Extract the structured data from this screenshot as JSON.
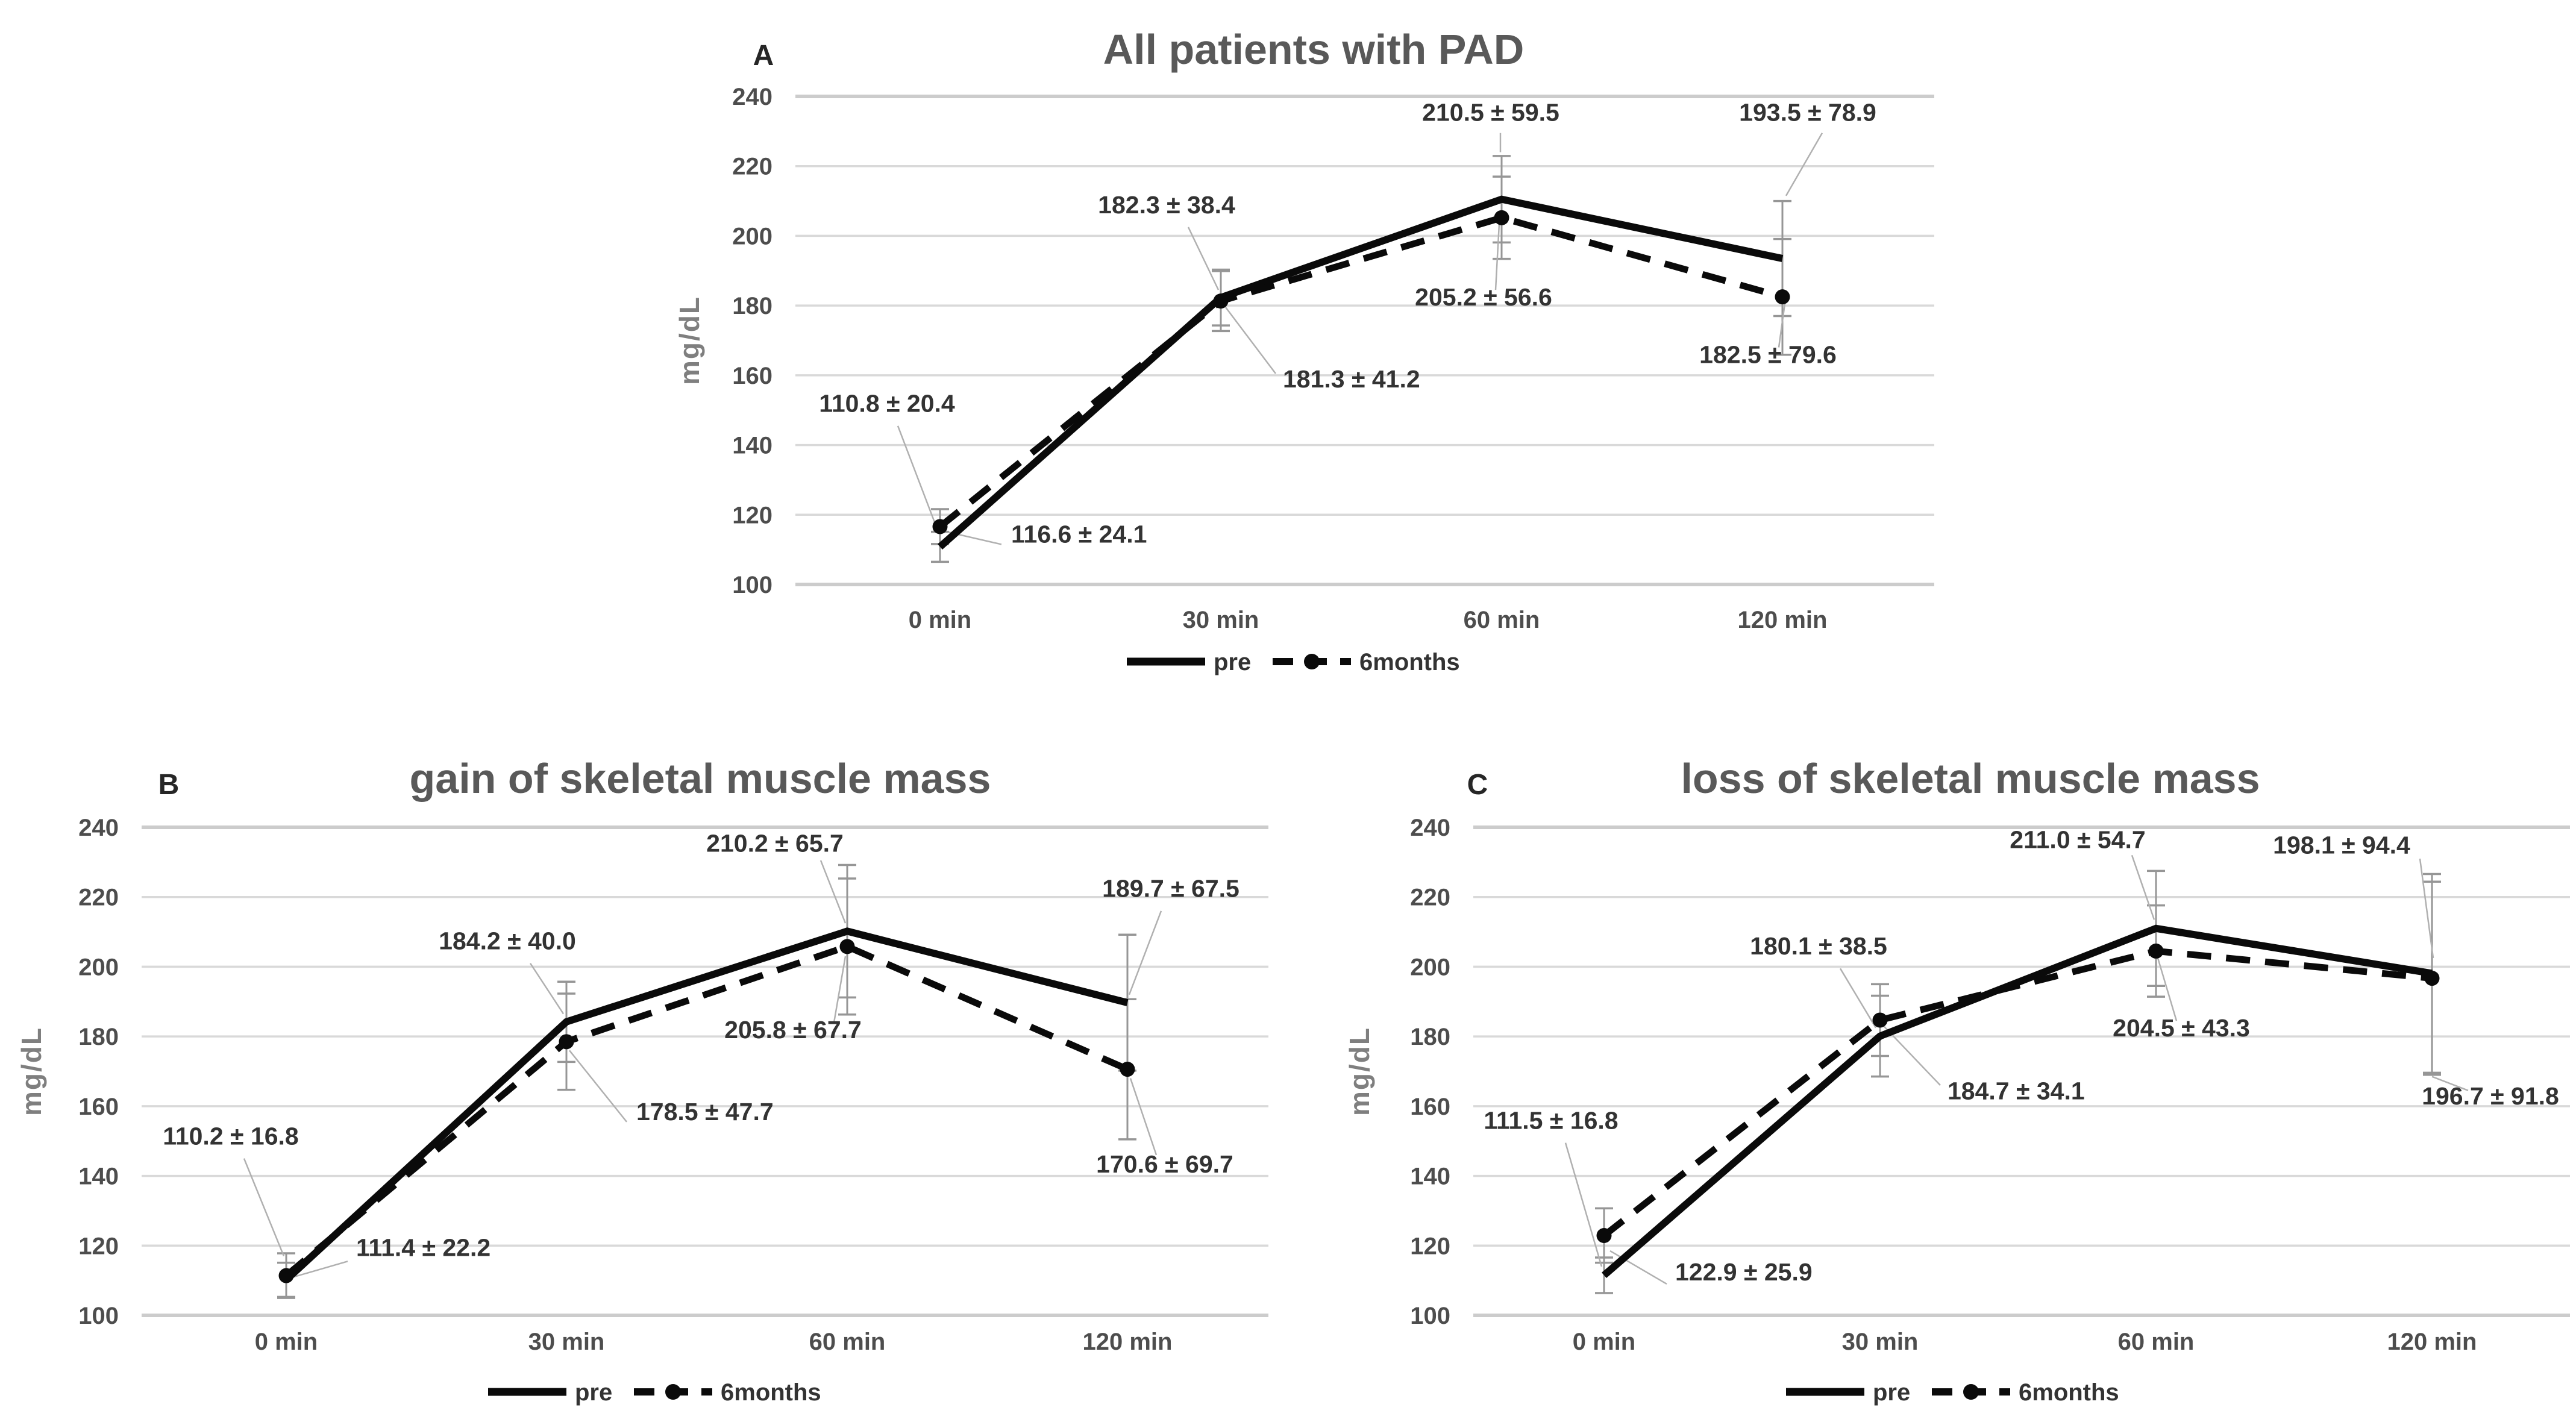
{
  "figure": {
    "background": "#ffffff",
    "colors": {
      "series_line": "#0a0a0a",
      "grid": "#d9d9d9",
      "grid_edge": "#cccccc",
      "error_bar": "#969696",
      "leader_line": "#b0b0b0",
      "title_text": "#595959",
      "tick_text": "#4d4d4d",
      "data_label_text": "#333333",
      "axis_label_text": "#7f7f7f"
    },
    "legend_labels": [
      "pre",
      "6months"
    ]
  },
  "chart_data": [
    {
      "type": "line",
      "panel": "A",
      "title": "All patients with PAD",
      "xlabel": "",
      "ylabel": "mg/dL",
      "categories": [
        "0 min",
        "30 min",
        "60 min",
        "120 min"
      ],
      "ylim": [
        100,
        240
      ],
      "y_ticks": [
        240,
        220,
        200,
        180,
        160,
        140,
        120,
        100
      ],
      "grid": true,
      "legend_position": "bottom",
      "series": [
        {
          "name": "pre",
          "line_style": "solid",
          "marker": "none",
          "values": [
            110.8,
            182.3,
            210.5,
            193.5
          ],
          "sd": [
            20.4,
            38.4,
            59.5,
            78.9
          ],
          "point_labels": [
            "110.8 ± 20.4",
            "182.3 ± 38.4",
            "210.5 ± 59.5",
            "193.5 ± 78.9"
          ],
          "err_visual": [
            4.3,
            8.0,
            12.4,
            16.5
          ]
        },
        {
          "name": "6months",
          "line_style": "dashed",
          "marker": "circle",
          "values": [
            116.6,
            181.3,
            205.2,
            182.5
          ],
          "sd": [
            24.1,
            41.2,
            56.6,
            79.6
          ],
          "point_labels": [
            "116.6 ± 24.1",
            "181.3 ± 41.2",
            "205.2 ± 56.6",
            "182.5 ± 79.6"
          ],
          "err_visual": [
            5.0,
            8.6,
            11.8,
            16.6
          ]
        }
      ]
    },
    {
      "type": "line",
      "panel": "B",
      "title": "gain of skeletal muscle mass",
      "xlabel": "",
      "ylabel": "mg/dL",
      "categories": [
        "0 min",
        "30 min",
        "60 min",
        "120 min"
      ],
      "ylim": [
        100,
        240
      ],
      "y_ticks": [
        240,
        220,
        200,
        180,
        160,
        140,
        120,
        100
      ],
      "grid": true,
      "legend_position": "bottom",
      "series": [
        {
          "name": "pre",
          "line_style": "solid",
          "marker": "none",
          "values": [
            110.2,
            184.2,
            210.2,
            189.7
          ],
          "sd": [
            16.8,
            40.0,
            65.7,
            67.5
          ],
          "point_labels": [
            "110.2 ± 16.8",
            "184.2 ± 40.0",
            "210.2 ± 65.7",
            "189.7 ± 67.5"
          ],
          "err_visual": [
            4.9,
            11.5,
            19.0,
            19.5
          ]
        },
        {
          "name": "6months",
          "line_style": "dashed",
          "marker": "circle",
          "values": [
            111.4,
            178.5,
            205.8,
            170.6
          ],
          "sd": [
            22.2,
            47.7,
            67.7,
            69.7
          ],
          "point_labels": [
            "111.4 ± 22.2",
            "178.5 ± 47.7",
            "205.8 ± 67.7",
            "170.6 ± 69.7"
          ],
          "err_visual": [
            6.4,
            13.8,
            19.5,
            20.1
          ]
        }
      ]
    },
    {
      "type": "line",
      "panel": "C",
      "title": "loss of skeletal muscle mass",
      "xlabel": "",
      "ylabel": "mg/dL",
      "categories": [
        "0 min",
        "30 min",
        "60 min",
        "120 min"
      ],
      "ylim": [
        100,
        240
      ],
      "y_ticks": [
        240,
        220,
        200,
        180,
        160,
        140,
        120,
        100
      ],
      "grid": true,
      "legend_position": "bottom",
      "series": [
        {
          "name": "pre",
          "line_style": "solid",
          "marker": "none",
          "values": [
            111.5,
            180.1,
            211.0,
            198.1
          ],
          "sd": [
            16.8,
            38.5,
            54.7,
            94.4
          ],
          "point_labels": [
            "111.5 ± 16.8",
            "180.1 ± 38.5",
            "211.0 ± 54.7",
            "198.1 ± 94.4"
          ],
          "err_visual": [
            5.1,
            11.6,
            16.5,
            28.5
          ]
        },
        {
          "name": "6months",
          "line_style": "dashed",
          "marker": "circle",
          "values": [
            122.9,
            184.7,
            204.5,
            196.7
          ],
          "sd": [
            25.9,
            34.1,
            43.3,
            91.8
          ],
          "point_labels": [
            "122.9 ± 25.9",
            "184.7 ± 34.1",
            "204.5 ± 43.3",
            "196.7 ± 91.8"
          ],
          "err_visual": [
            7.8,
            10.3,
            13.1,
            27.7
          ]
        }
      ]
    }
  ]
}
